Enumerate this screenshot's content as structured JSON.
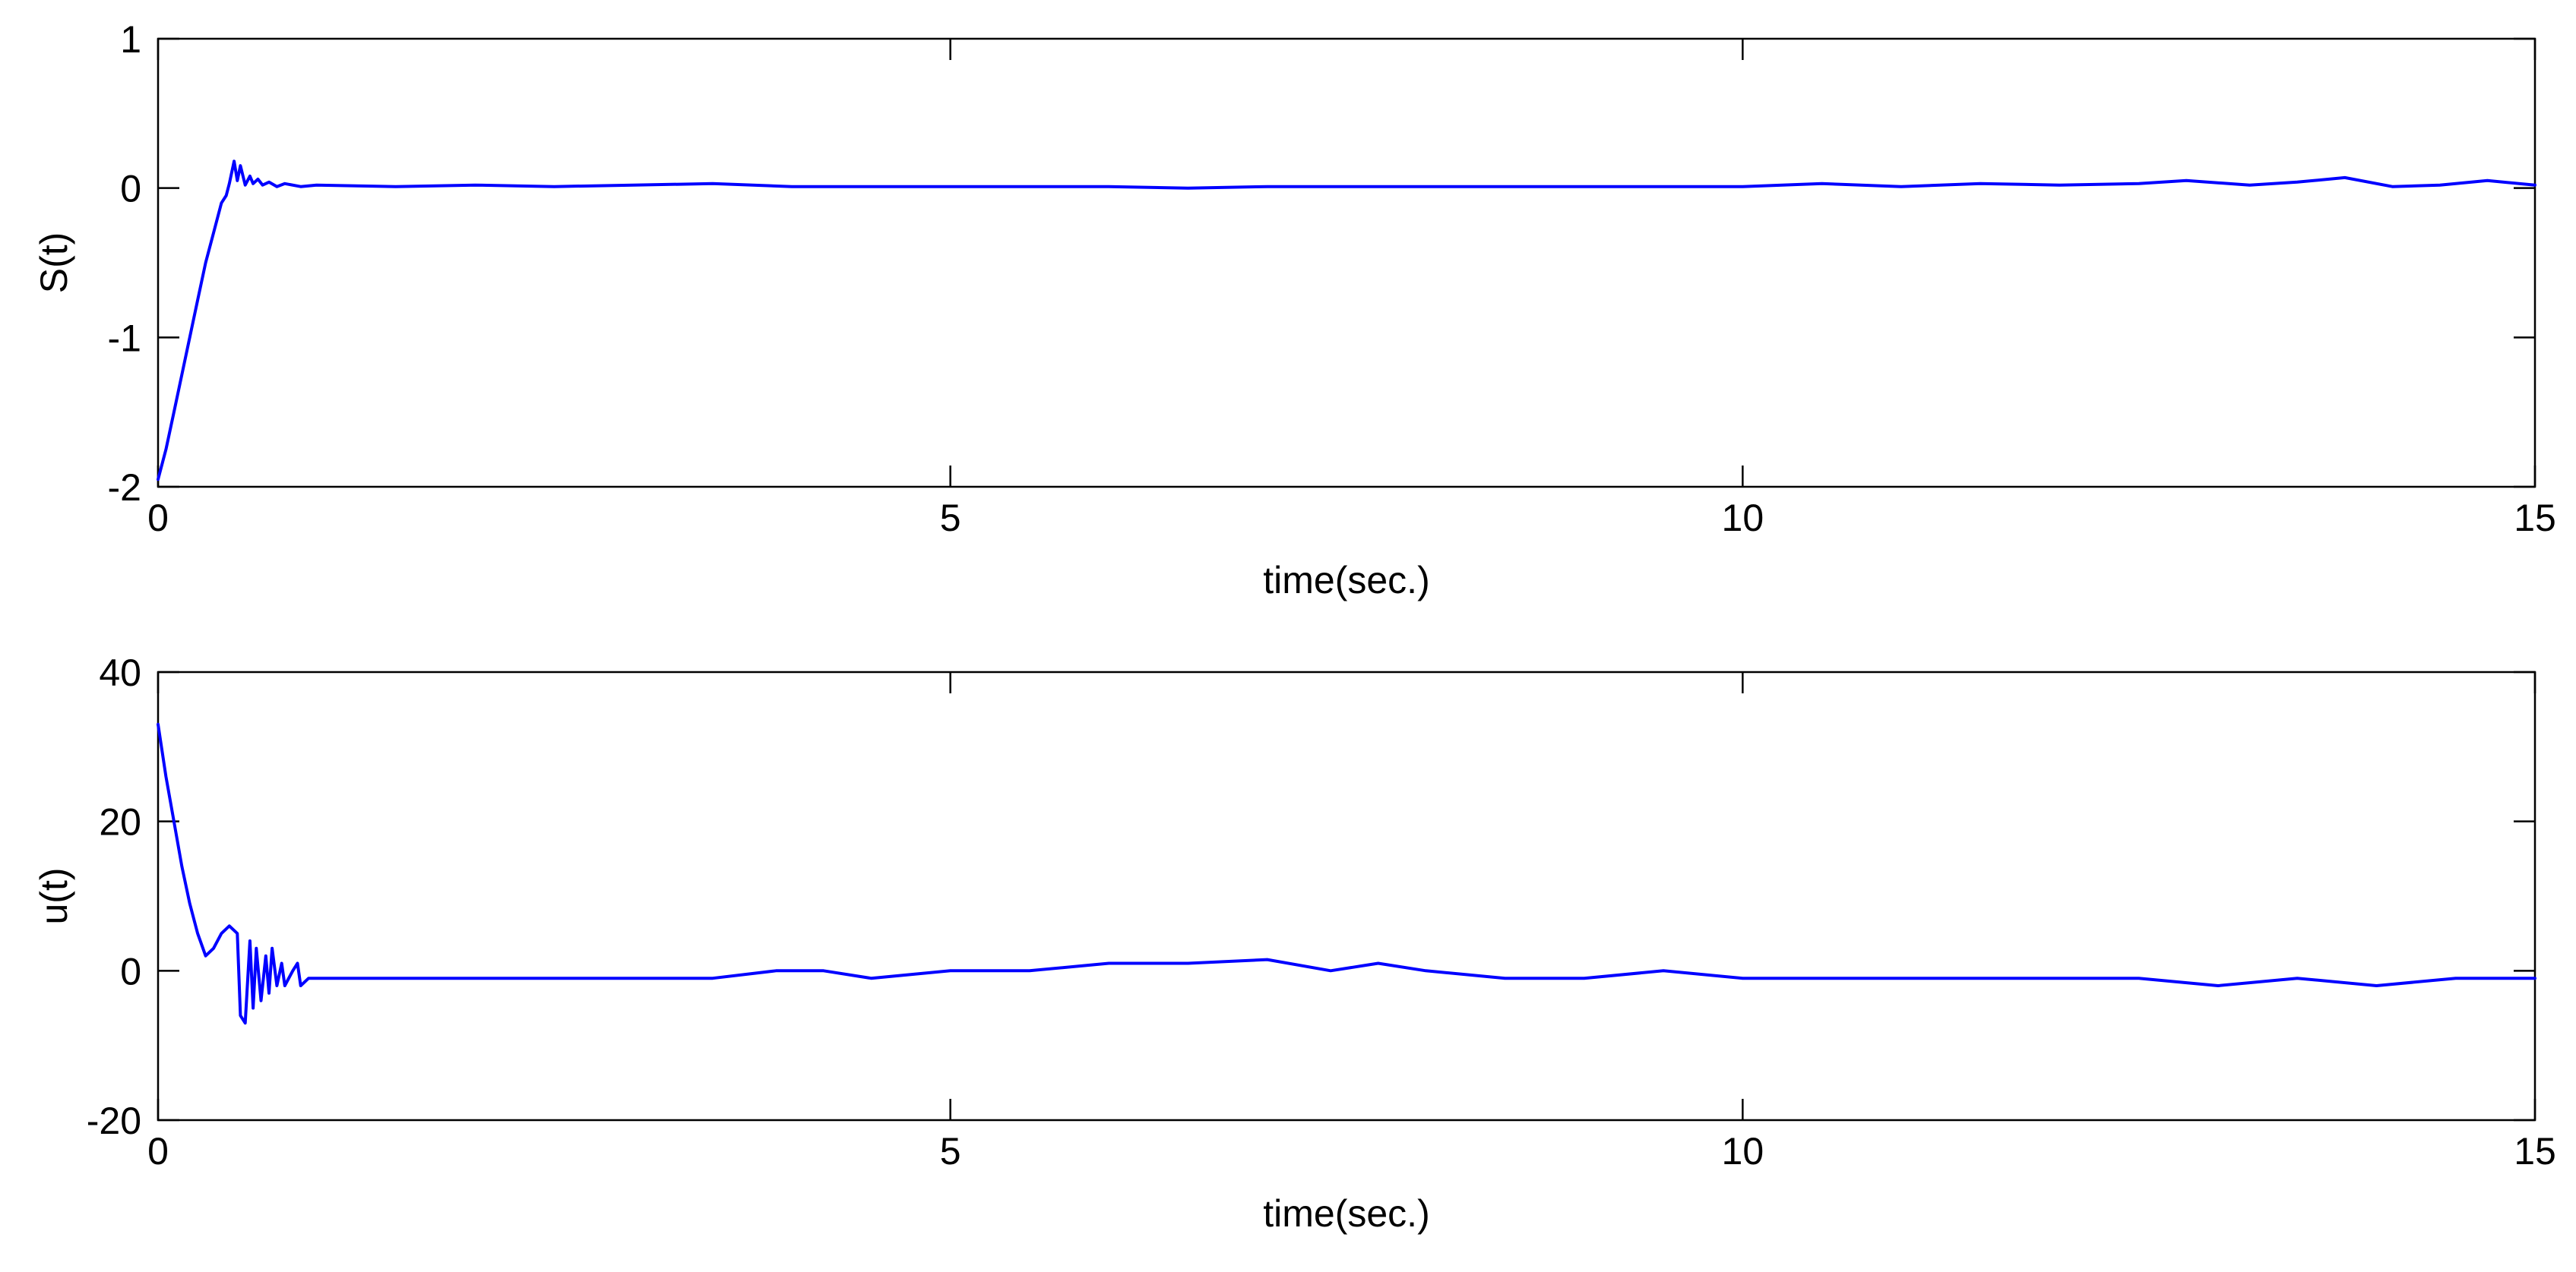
{
  "chart_data": [
    {
      "type": "line",
      "xlabel": "time(sec.)",
      "ylabel": "S(t)",
      "xlim": [
        0,
        15
      ],
      "ylim": [
        -2,
        1
      ],
      "xticks": [
        0,
        5,
        10,
        15
      ],
      "yticks": [
        -2,
        -1,
        0,
        1
      ],
      "grid": false,
      "legend": "none",
      "series": [
        {
          "color": "#0000ff",
          "x": [
            0,
            0.05,
            0.1,
            0.15,
            0.2,
            0.25,
            0.3,
            0.35,
            0.4,
            0.43,
            0.45,
            0.48,
            0.5,
            0.52,
            0.55,
            0.58,
            0.6,
            0.63,
            0.66,
            0.7,
            0.75,
            0.8,
            0.9,
            1.0,
            1.5,
            2.0,
            2.5,
            3.0,
            3.5,
            4.0,
            4.5,
            5.0,
            5.5,
            6.0,
            6.5,
            7.0,
            7.5,
            8.0,
            8.5,
            9.0,
            9.5,
            10.0,
            10.5,
            11.0,
            11.5,
            12.0,
            12.5,
            12.8,
            13.2,
            13.5,
            13.8,
            14.1,
            14.4,
            14.7,
            15.0
          ],
          "y": [
            -1.95,
            -1.75,
            -1.5,
            -1.25,
            -1.0,
            -0.75,
            -0.5,
            -0.3,
            -0.1,
            -0.05,
            0.03,
            0.18,
            0.05,
            0.15,
            0.02,
            0.08,
            0.03,
            0.06,
            0.02,
            0.04,
            0.01,
            0.03,
            0.01,
            0.02,
            0.01,
            0.02,
            0.01,
            0.02,
            0.03,
            0.01,
            0.01,
            0.01,
            0.01,
            0.01,
            0.0,
            0.01,
            0.01,
            0.01,
            0.01,
            0.01,
            0.01,
            0.01,
            0.03,
            0.01,
            0.03,
            0.02,
            0.03,
            0.05,
            0.02,
            0.04,
            0.07,
            0.01,
            0.02,
            0.05,
            0.02
          ]
        }
      ]
    },
    {
      "type": "line",
      "xlabel": "time(sec.)",
      "ylabel": "u(t)",
      "xlim": [
        0,
        15
      ],
      "ylim": [
        -20,
        40
      ],
      "xticks": [
        0,
        5,
        10,
        15
      ],
      "yticks": [
        -20,
        0,
        20,
        40
      ],
      "grid": false,
      "legend": "none",
      "series": [
        {
          "color": "#0000ff",
          "x": [
            0,
            0.05,
            0.1,
            0.15,
            0.2,
            0.25,
            0.3,
            0.35,
            0.4,
            0.45,
            0.5,
            0.52,
            0.55,
            0.58,
            0.6,
            0.62,
            0.65,
            0.68,
            0.7,
            0.72,
            0.75,
            0.78,
            0.8,
            0.85,
            0.88,
            0.9,
            0.95,
            1.0,
            1.5,
            2.0,
            2.5,
            3.0,
            3.5,
            3.9,
            4.2,
            4.5,
            5.0,
            5.5,
            6.0,
            6.5,
            7.0,
            7.4,
            7.7,
            8.0,
            8.5,
            9.0,
            9.5,
            10.0,
            10.5,
            11.0,
            11.5,
            12.0,
            12.5,
            13.0,
            13.5,
            14.0,
            14.5,
            15.0
          ],
          "y": [
            33,
            26,
            20,
            14,
            9,
            5,
            2,
            3,
            5,
            6,
            5,
            -6,
            -7,
            4,
            -5,
            3,
            -4,
            2,
            -3,
            3,
            -2,
            1,
            -2,
            0,
            1,
            -2,
            -1,
            -1,
            -1,
            -1,
            -1,
            -1,
            -1,
            0,
            0,
            -1,
            0,
            0,
            1,
            1,
            1.5,
            0,
            1,
            0,
            -1,
            -1,
            0,
            -1,
            -1,
            -1,
            -1,
            -1,
            -1,
            -2,
            -1,
            -2,
            -1,
            -1
          ]
        }
      ]
    }
  ]
}
